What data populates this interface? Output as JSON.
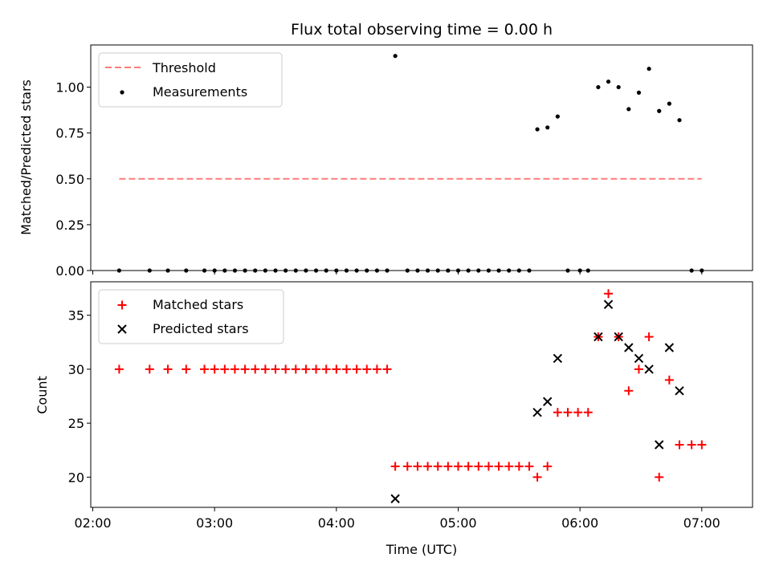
{
  "chart_data": [
    {
      "type": "scatter",
      "title": "Flux total observing time = 0.00 h",
      "xlabel": "",
      "ylabel": "Matched/Predicted stars",
      "ylim": [
        0,
        1.23
      ],
      "xlim": [
        "01:59",
        "07:25"
      ],
      "yticks": [
        "0.00",
        "0.25",
        "0.50",
        "0.75",
        "1.00"
      ],
      "xticks": [
        "02:00",
        "03:00",
        "04:00",
        "05:00",
        "06:00",
        "07:00"
      ],
      "legend_position": "upper-left",
      "series": [
        {
          "name": "Threshold",
          "style": "dashed-line",
          "color": "#ff7b7b",
          "points": [
            [
              "02:13",
              0.5
            ],
            [
              "07:00",
              0.5
            ]
          ]
        },
        {
          "name": "Measurements",
          "style": "dot",
          "color": "#000000",
          "points": [
            [
              "02:13",
              0.0
            ],
            [
              "02:28",
              0.0
            ],
            [
              "02:37",
              0.0
            ],
            [
              "02:46",
              0.0
            ],
            [
              "02:55",
              0.0
            ],
            [
              "03:00",
              0.0
            ],
            [
              "03:05",
              0.0
            ],
            [
              "03:10",
              0.0
            ],
            [
              "03:15",
              0.0
            ],
            [
              "03:20",
              0.0
            ],
            [
              "03:25",
              0.0
            ],
            [
              "03:30",
              0.0
            ],
            [
              "03:35",
              0.0
            ],
            [
              "03:40",
              0.0
            ],
            [
              "03:45",
              0.0
            ],
            [
              "03:50",
              0.0
            ],
            [
              "03:55",
              0.0
            ],
            [
              "04:00",
              0.0
            ],
            [
              "04:05",
              0.0
            ],
            [
              "04:10",
              0.0
            ],
            [
              "04:15",
              0.0
            ],
            [
              "04:20",
              0.0
            ],
            [
              "04:25",
              0.0
            ],
            [
              "04:29",
              1.17
            ],
            [
              "04:35",
              0.0
            ],
            [
              "04:40",
              0.0
            ],
            [
              "04:45",
              0.0
            ],
            [
              "04:50",
              0.0
            ],
            [
              "04:55",
              0.0
            ],
            [
              "05:00",
              0.0
            ],
            [
              "05:05",
              0.0
            ],
            [
              "05:10",
              0.0
            ],
            [
              "05:15",
              0.0
            ],
            [
              "05:20",
              0.0
            ],
            [
              "05:25",
              0.0
            ],
            [
              "05:30",
              0.0
            ],
            [
              "05:35",
              0.0
            ],
            [
              "05:39",
              0.77
            ],
            [
              "05:44",
              0.78
            ],
            [
              "05:49",
              0.84
            ],
            [
              "05:54",
              0.0
            ],
            [
              "06:00",
              0.0
            ],
            [
              "06:04",
              0.0
            ],
            [
              "06:09",
              1.0
            ],
            [
              "06:14",
              1.03
            ],
            [
              "06:19",
              1.0
            ],
            [
              "06:24",
              0.88
            ],
            [
              "06:29",
              0.97
            ],
            [
              "06:34",
              1.1
            ],
            [
              "06:39",
              0.87
            ],
            [
              "06:44",
              0.91
            ],
            [
              "06:49",
              0.82
            ],
            [
              "06:55",
              0.0
            ],
            [
              "07:00",
              0.0
            ]
          ]
        }
      ]
    },
    {
      "type": "scatter",
      "title": "",
      "xlabel": "Time (UTC)",
      "ylabel": "Count",
      "ylim": [
        17.2,
        38.1
      ],
      "xlim": [
        "01:59",
        "07:25"
      ],
      "yticks": [
        "20",
        "25",
        "30",
        "35"
      ],
      "xticks": [
        "02:00",
        "03:00",
        "04:00",
        "05:00",
        "06:00",
        "07:00"
      ],
      "legend_position": "upper-left",
      "series": [
        {
          "name": "Matched stars",
          "style": "plus",
          "color": "#ff0000",
          "points": [
            [
              "02:13",
              30
            ],
            [
              "02:28",
              30
            ],
            [
              "02:37",
              30
            ],
            [
              "02:46",
              30
            ],
            [
              "02:55",
              30
            ],
            [
              "03:00",
              30
            ],
            [
              "03:05",
              30
            ],
            [
              "03:10",
              30
            ],
            [
              "03:15",
              30
            ],
            [
              "03:20",
              30
            ],
            [
              "03:25",
              30
            ],
            [
              "03:30",
              30
            ],
            [
              "03:35",
              30
            ],
            [
              "03:40",
              30
            ],
            [
              "03:45",
              30
            ],
            [
              "03:50",
              30
            ],
            [
              "03:55",
              30
            ],
            [
              "04:00",
              30
            ],
            [
              "04:05",
              30
            ],
            [
              "04:10",
              30
            ],
            [
              "04:15",
              30
            ],
            [
              "04:20",
              30
            ],
            [
              "04:25",
              30
            ],
            [
              "04:29",
              21
            ],
            [
              "04:35",
              21
            ],
            [
              "04:40",
              21
            ],
            [
              "04:45",
              21
            ],
            [
              "04:50",
              21
            ],
            [
              "04:55",
              21
            ],
            [
              "05:00",
              21
            ],
            [
              "05:05",
              21
            ],
            [
              "05:10",
              21
            ],
            [
              "05:15",
              21
            ],
            [
              "05:20",
              21
            ],
            [
              "05:25",
              21
            ],
            [
              "05:30",
              21
            ],
            [
              "05:35",
              21
            ],
            [
              "05:39",
              20
            ],
            [
              "05:44",
              21
            ],
            [
              "05:49",
              26
            ],
            [
              "05:54",
              26
            ],
            [
              "05:59",
              26
            ],
            [
              "06:04",
              26
            ],
            [
              "06:09",
              33
            ],
            [
              "06:14",
              37
            ],
            [
              "06:19",
              33
            ],
            [
              "06:24",
              28
            ],
            [
              "06:29",
              30
            ],
            [
              "06:34",
              33
            ],
            [
              "06:39",
              20
            ],
            [
              "06:44",
              29
            ],
            [
              "06:49",
              23
            ],
            [
              "06:55",
              23
            ],
            [
              "07:00",
              23
            ]
          ]
        },
        {
          "name": "Predicted stars",
          "style": "cross",
          "color": "#000000",
          "points": [
            [
              "04:29",
              18
            ],
            [
              "05:39",
              26
            ],
            [
              "05:44",
              27
            ],
            [
              "05:49",
              31
            ],
            [
              "06:09",
              33
            ],
            [
              "06:14",
              36
            ],
            [
              "06:19",
              33
            ],
            [
              "06:24",
              32
            ],
            [
              "06:29",
              31
            ],
            [
              "06:34",
              30
            ],
            [
              "06:39",
              23
            ],
            [
              "06:44",
              32
            ],
            [
              "06:49",
              28
            ]
          ]
        }
      ]
    }
  ]
}
